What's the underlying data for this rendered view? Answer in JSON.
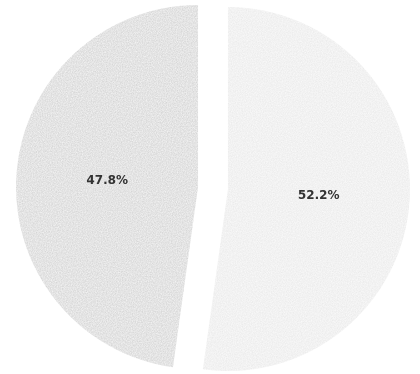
{
  "chart_data": {
    "type": "pie",
    "values": [
      52.2,
      47.8
    ],
    "value_labels": [
      "52.2%",
      "47.8%"
    ],
    "colors": [
      "#d2d2d2",
      "#a4a4a4"
    ]
  }
}
